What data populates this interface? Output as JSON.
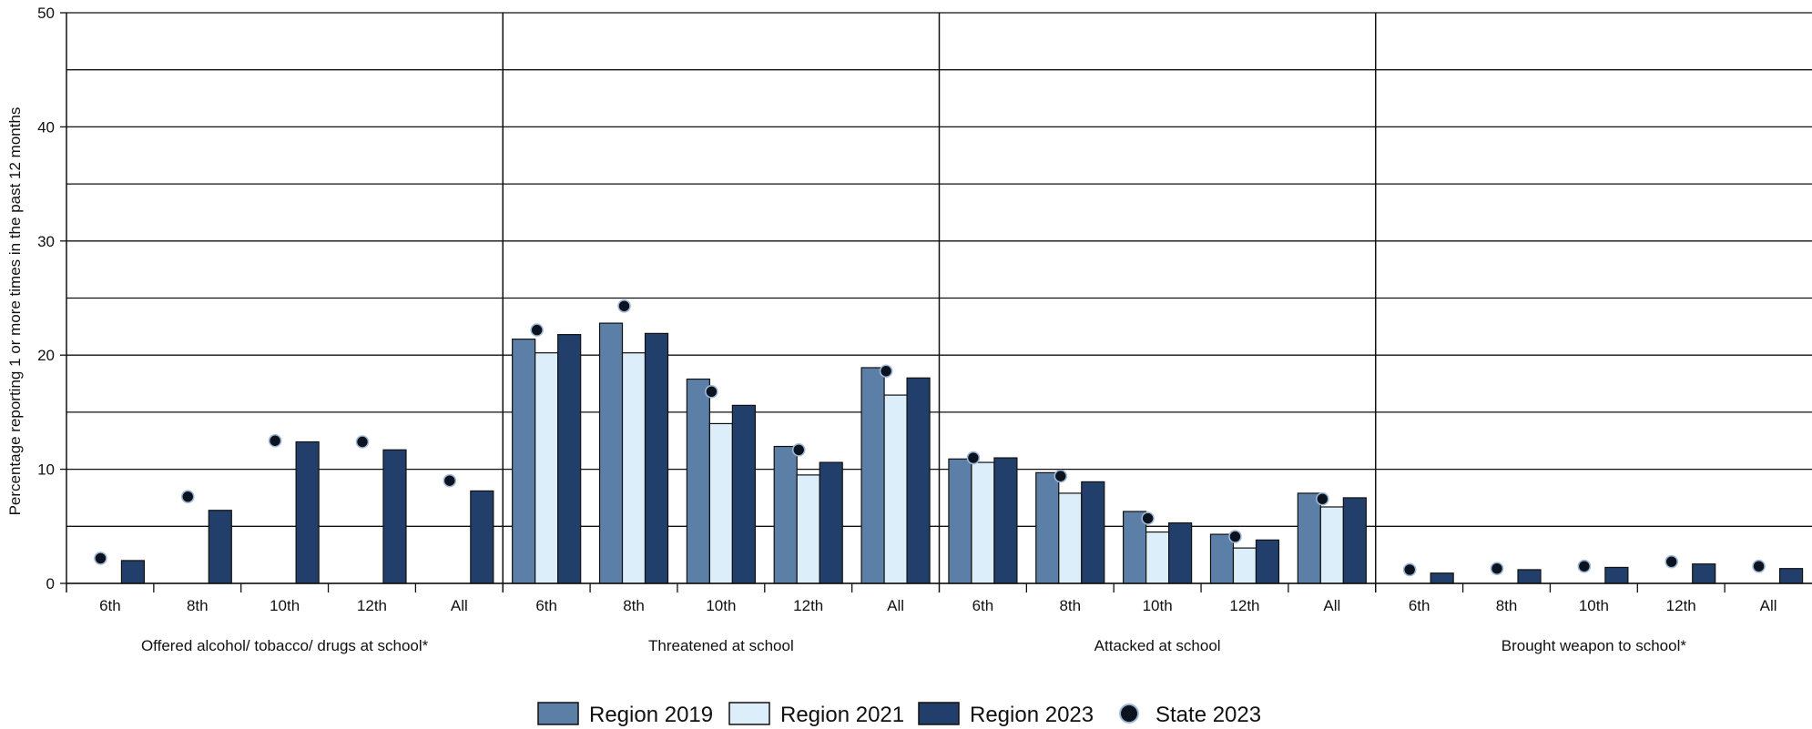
{
  "chart_data": {
    "type": "bar",
    "ylabel": "Percentage reporting 1 or more times in the past 12 months",
    "xlabel": "",
    "ylim": [
      0,
      50
    ],
    "y_ticks": [
      0,
      10,
      20,
      30,
      40,
      50
    ],
    "grid": true,
    "legend_position": "bottom-center",
    "groups": [
      {
        "label": "Offered alcohol/ tobacco/ drugs at school*",
        "categories": [
          "6th",
          "8th",
          "10th",
          "12th",
          "All"
        ],
        "series": [
          {
            "name": "Region 2019",
            "values": [
              null,
              null,
              null,
              null,
              null
            ]
          },
          {
            "name": "Region 2021",
            "values": [
              null,
              null,
              null,
              null,
              null
            ]
          },
          {
            "name": "Region 2023",
            "values": [
              2.0,
              6.4,
              12.4,
              11.7,
              8.1
            ]
          },
          {
            "name": "State 2023",
            "values": [
              2.2,
              7.6,
              12.5,
              12.4,
              9.0
            ]
          }
        ]
      },
      {
        "label": "Threatened at school",
        "categories": [
          "6th",
          "8th",
          "10th",
          "12th",
          "All"
        ],
        "series": [
          {
            "name": "Region 2019",
            "values": [
              21.4,
              22.8,
              17.9,
              12.0,
              18.9
            ]
          },
          {
            "name": "Region 2021",
            "values": [
              20.2,
              20.2,
              14.0,
              9.5,
              16.5
            ]
          },
          {
            "name": "Region 2023",
            "values": [
              21.8,
              21.9,
              15.6,
              10.6,
              18.0
            ]
          },
          {
            "name": "State 2023",
            "values": [
              22.2,
              24.3,
              16.8,
              11.7,
              18.6
            ]
          }
        ]
      },
      {
        "label": "Attacked at school",
        "categories": [
          "6th",
          "8th",
          "10th",
          "12th",
          "All"
        ],
        "series": [
          {
            "name": "Region 2019",
            "values": [
              10.9,
              9.7,
              6.3,
              4.3,
              7.9
            ]
          },
          {
            "name": "Region 2021",
            "values": [
              10.6,
              7.9,
              4.5,
              3.1,
              6.7
            ]
          },
          {
            "name": "Region 2023",
            "values": [
              11.0,
              8.9,
              5.3,
              3.8,
              7.5
            ]
          },
          {
            "name": "State 2023",
            "values": [
              11.0,
              9.4,
              5.7,
              4.1,
              7.4
            ]
          }
        ]
      },
      {
        "label": "Brought weapon to school*",
        "categories": [
          "6th",
          "8th",
          "10th",
          "12th",
          "All"
        ],
        "series": [
          {
            "name": "Region 2019",
            "values": [
              null,
              null,
              null,
              null,
              null
            ]
          },
          {
            "name": "Region 2021",
            "values": [
              null,
              null,
              null,
              null,
              null
            ]
          },
          {
            "name": "Region 2023",
            "values": [
              0.9,
              1.2,
              1.4,
              1.7,
              1.3
            ]
          },
          {
            "name": "State 2023",
            "values": [
              1.2,
              1.3,
              1.5,
              1.9,
              1.5
            ]
          }
        ]
      }
    ],
    "legend": [
      {
        "name": "Region 2019",
        "kind": "bar",
        "color": "#5b7fa6"
      },
      {
        "name": "Region 2021",
        "kind": "bar",
        "color": "#dceefa"
      },
      {
        "name": "Region 2023",
        "kind": "bar",
        "color": "#213f6a"
      },
      {
        "name": "State 2023",
        "kind": "dot",
        "color": "#0b1220"
      }
    ],
    "colors": {
      "Region 2019": "#5b7fa6",
      "Region 2021": "#dceefa",
      "Region 2023": "#213f6a",
      "State 2023": "#0b1220",
      "grid": "#111111"
    }
  }
}
